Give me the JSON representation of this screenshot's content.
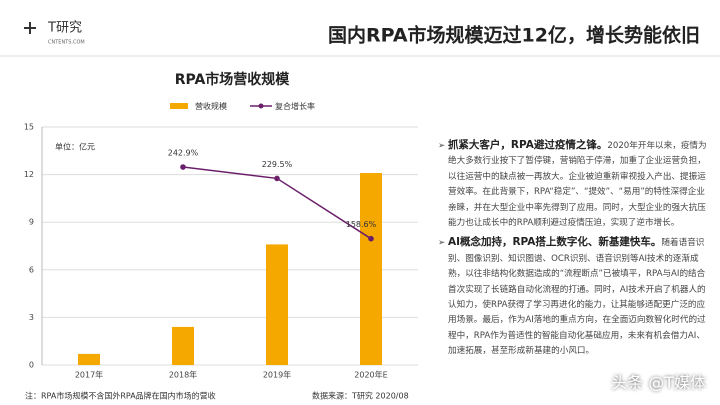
{
  "header": {
    "logo": "T研究",
    "logo_sub": "CNTENTS.COM",
    "title": "国内RPA市场规模迈过12亿，增长势能依旧"
  },
  "chart_data": {
    "type": "bar",
    "title": "RPA市场营收规模",
    "unit_label": "单位：亿元",
    "categories": [
      "2017年",
      "2018年",
      "2019年",
      "2020年E"
    ],
    "series": [
      {
        "name": "营收规模",
        "type": "bar",
        "color": "#f5a800",
        "values": [
          0.7,
          2.4,
          7.6,
          12.1
        ]
      },
      {
        "name": "复合增长率",
        "type": "line",
        "axis": "y2",
        "color": "#6b1f6b",
        "values": [
          null,
          242.9,
          229.5,
          158.6
        ],
        "value_labels": [
          null,
          "242.9%",
          "229.5%",
          "158.6%"
        ]
      }
    ],
    "ylim": [
      0,
      15
    ],
    "yticks": [
      0,
      3,
      6,
      9,
      12,
      15
    ],
    "y2lim": [
      10,
      290
    ],
    "grid": true,
    "legend": "top"
  },
  "footer": {
    "note": "注：RPA市场规模不含国外RPA品牌在国内市场的营收",
    "source": "数据来源：T研究 2020/08"
  },
  "text_panel": {
    "bullets": [
      {
        "heading": "抓紧大客户，RPA避过疫情之锋。",
        "body": "2020年开年以来，疫情为绝大多数行业按下了暂停键，营销陷于停滞，加重了企业运营负担，以往运营中的缺点被一再放大。企业被迫重新审视投入产出、提振运营效率。在此背景下，RPA“稳定”、“提效”、“易用”的特性深得企业亲睐，并在大型企业中率先得到了应用。同时，大型企业的强大抗压能力也让成长中的RPA顺利避过疫情压迫，实现了逆市增长。"
      },
      {
        "heading": "AI概念加持，RPA搭上数字化、新基建快车。",
        "body": "随着语音识别、图像识别、知识图谱、OCR识别、语音识别等AI技术的逐渐成熟，以往非结构化数据造成的“流程断点”已被填平，RPA与AI的结合首次实现了长链路自动化流程的打通。同时，AI技术开启了机器人的认知力，使RPA获得了学习再进化的能力，让其能够适配更广泛的应用场景。最后，作为AI落地的重点方向，在全面迈向数智化时代的过程中，RPA作为普适性的智能自动化基础应用，未来有机会借力AI、加速拓展，甚至形成新基建的小风口。"
      }
    ]
  },
  "watermark": "头条 @T媒体"
}
